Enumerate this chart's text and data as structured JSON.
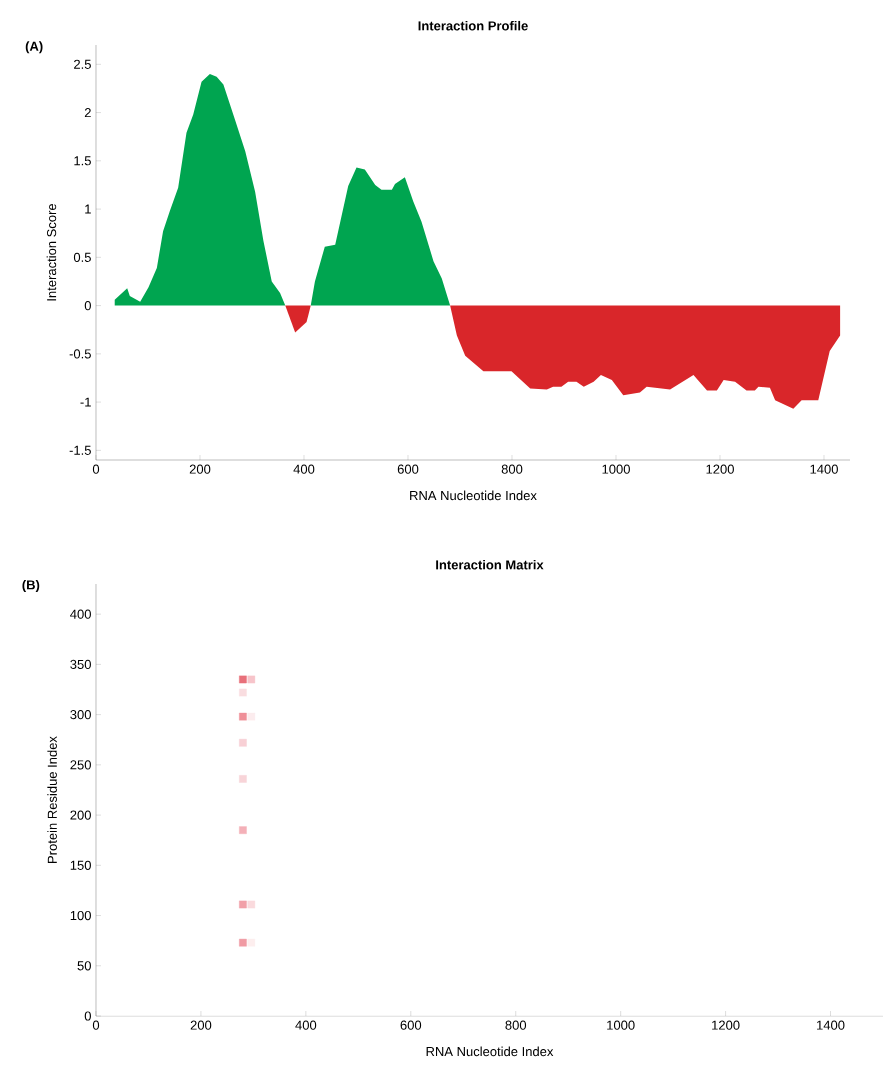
{
  "chart_data": [
    {
      "type": "area",
      "title": "Interaction Profile",
      "xlabel": "RNA Nucleotide Index",
      "ylabel": "Interaction Score",
      "annotations": [
        "(A)"
      ],
      "xlim": [
        0,
        1450
      ],
      "ylim": [
        -1.6,
        2.7
      ],
      "xticks": [
        0,
        200,
        400,
        600,
        800,
        1000,
        1200,
        1400
      ],
      "yticks": [
        -1.5,
        -1,
        -0.5,
        0,
        0.5,
        1,
        1.5,
        2,
        2.5
      ],
      "series": [
        {
          "color": "#00a550",
          "x": [
            36,
            36,
            60,
            65,
            85,
            101,
            117,
            129,
            142,
            158,
            174,
            187,
            203,
            219,
            232,
            245,
            267,
            287,
            306,
            322,
            338,
            354,
            364
          ],
          "values": [
            0,
            0.06,
            0.18,
            0.1,
            0.04,
            0.19,
            0.39,
            0.77,
            0.98,
            1.22,
            1.79,
            1.98,
            2.32,
            2.4,
            2.37,
            2.29,
            1.93,
            1.6,
            1.18,
            0.67,
            0.25,
            0.13,
            0
          ]
        },
        {
          "color": "#d9262a",
          "x": [
            364,
            383,
            405,
            413
          ],
          "values": [
            0,
            -0.28,
            -0.17,
            0
          ]
        },
        {
          "color": "#00a550",
          "x": [
            413,
            421,
            440,
            460,
            485,
            501,
            517,
            537,
            549,
            569,
            575,
            594,
            610,
            626,
            649,
            665,
            681
          ],
          "values": [
            0,
            0.25,
            0.61,
            0.63,
            1.24,
            1.43,
            1.41,
            1.25,
            1.2,
            1.2,
            1.26,
            1.33,
            1.08,
            0.87,
            0.46,
            0.28,
            0
          ]
        },
        {
          "color": "#d9262a",
          "x": [
            681,
            694,
            710,
            745,
            799,
            835,
            867,
            879,
            895,
            908,
            924,
            938,
            957,
            971,
            992,
            1014,
            1046,
            1059,
            1104,
            1149,
            1175,
            1194,
            1207,
            1229,
            1251,
            1267,
            1274,
            1296,
            1306,
            1341,
            1357,
            1389,
            1411,
            1431,
            1431
          ],
          "values": [
            0,
            -0.31,
            -0.52,
            -0.68,
            -0.68,
            -0.86,
            -0.87,
            -0.84,
            -0.84,
            -0.79,
            -0.79,
            -0.84,
            -0.79,
            -0.72,
            -0.77,
            -0.93,
            -0.9,
            -0.84,
            -0.87,
            -0.72,
            -0.88,
            -0.88,
            -0.77,
            -0.79,
            -0.88,
            -0.88,
            -0.84,
            -0.85,
            -0.98,
            -1.07,
            -0.98,
            -0.98,
            -0.47,
            -0.31,
            0
          ]
        }
      ]
    },
    {
      "type": "scatter",
      "title": "Interaction Matrix",
      "xlabel": "RNA Nucleotide Index",
      "ylabel": "Protein Residue Index",
      "annotations": [
        "(B)"
      ],
      "marker": "square",
      "xlim": [
        0,
        1500
      ],
      "ylim": [
        0,
        430
      ],
      "xticks": [
        0,
        200,
        400,
        600,
        800,
        1000,
        1200,
        1400
      ],
      "yticks": [
        0,
        50,
        100,
        150,
        200,
        250,
        300,
        350,
        400
      ],
      "series": [
        {
          "x": [
            280,
            280,
            280,
            280,
            280,
            280,
            280,
            280,
            296,
            296,
            296,
            296
          ],
          "values": [
            335,
            322,
            298,
            272,
            236,
            185,
            111,
            73,
            335,
            298,
            111,
            73
          ],
          "colors": [
            "#e8707a",
            "#f9dde0",
            "#ef8f98",
            "#f8d0d5",
            "#f8d4d8",
            "#f4b0b8",
            "#f1a0a8",
            "#f09aa3",
            "#f7c4ca",
            "#fcecee",
            "#fadadd",
            "#fdeeee"
          ]
        }
      ]
    }
  ]
}
